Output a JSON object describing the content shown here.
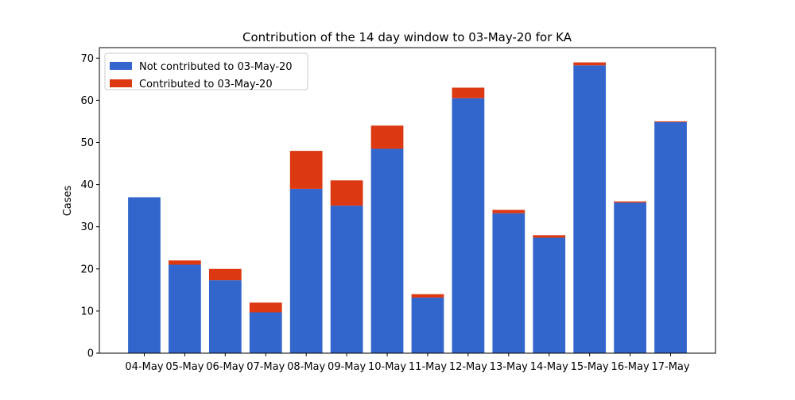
{
  "chart_data": {
    "type": "bar",
    "stacked": true,
    "title": "Contribution of the 14 day window to 03-May-20 for KA",
    "xlabel": "",
    "ylabel": "Cases",
    "ylim": [
      0,
      72.5
    ],
    "yticks": [
      0,
      10,
      20,
      30,
      40,
      50,
      60,
      70
    ],
    "grid": false,
    "legend_position": "top-left",
    "categories": [
      "04-May",
      "05-May",
      "06-May",
      "07-May",
      "08-May",
      "09-May",
      "10-May",
      "11-May",
      "12-May",
      "13-May",
      "14-May",
      "15-May",
      "16-May",
      "17-May"
    ],
    "series": [
      {
        "name": "Not contributed to 03-May-20",
        "color": "#3366cc",
        "values": [
          37,
          21,
          17.3,
          9.7,
          39,
          35,
          48.5,
          13.2,
          60.5,
          33.2,
          27.4,
          68.3,
          35.7,
          54.8
        ]
      },
      {
        "name": "Contributed to 03-May-20",
        "color": "#dc3912",
        "values": [
          0,
          1,
          2.7,
          2.3,
          9,
          6,
          5.5,
          0.8,
          2.5,
          0.8,
          0.6,
          0.7,
          0.3,
          0.2
        ]
      }
    ]
  }
}
